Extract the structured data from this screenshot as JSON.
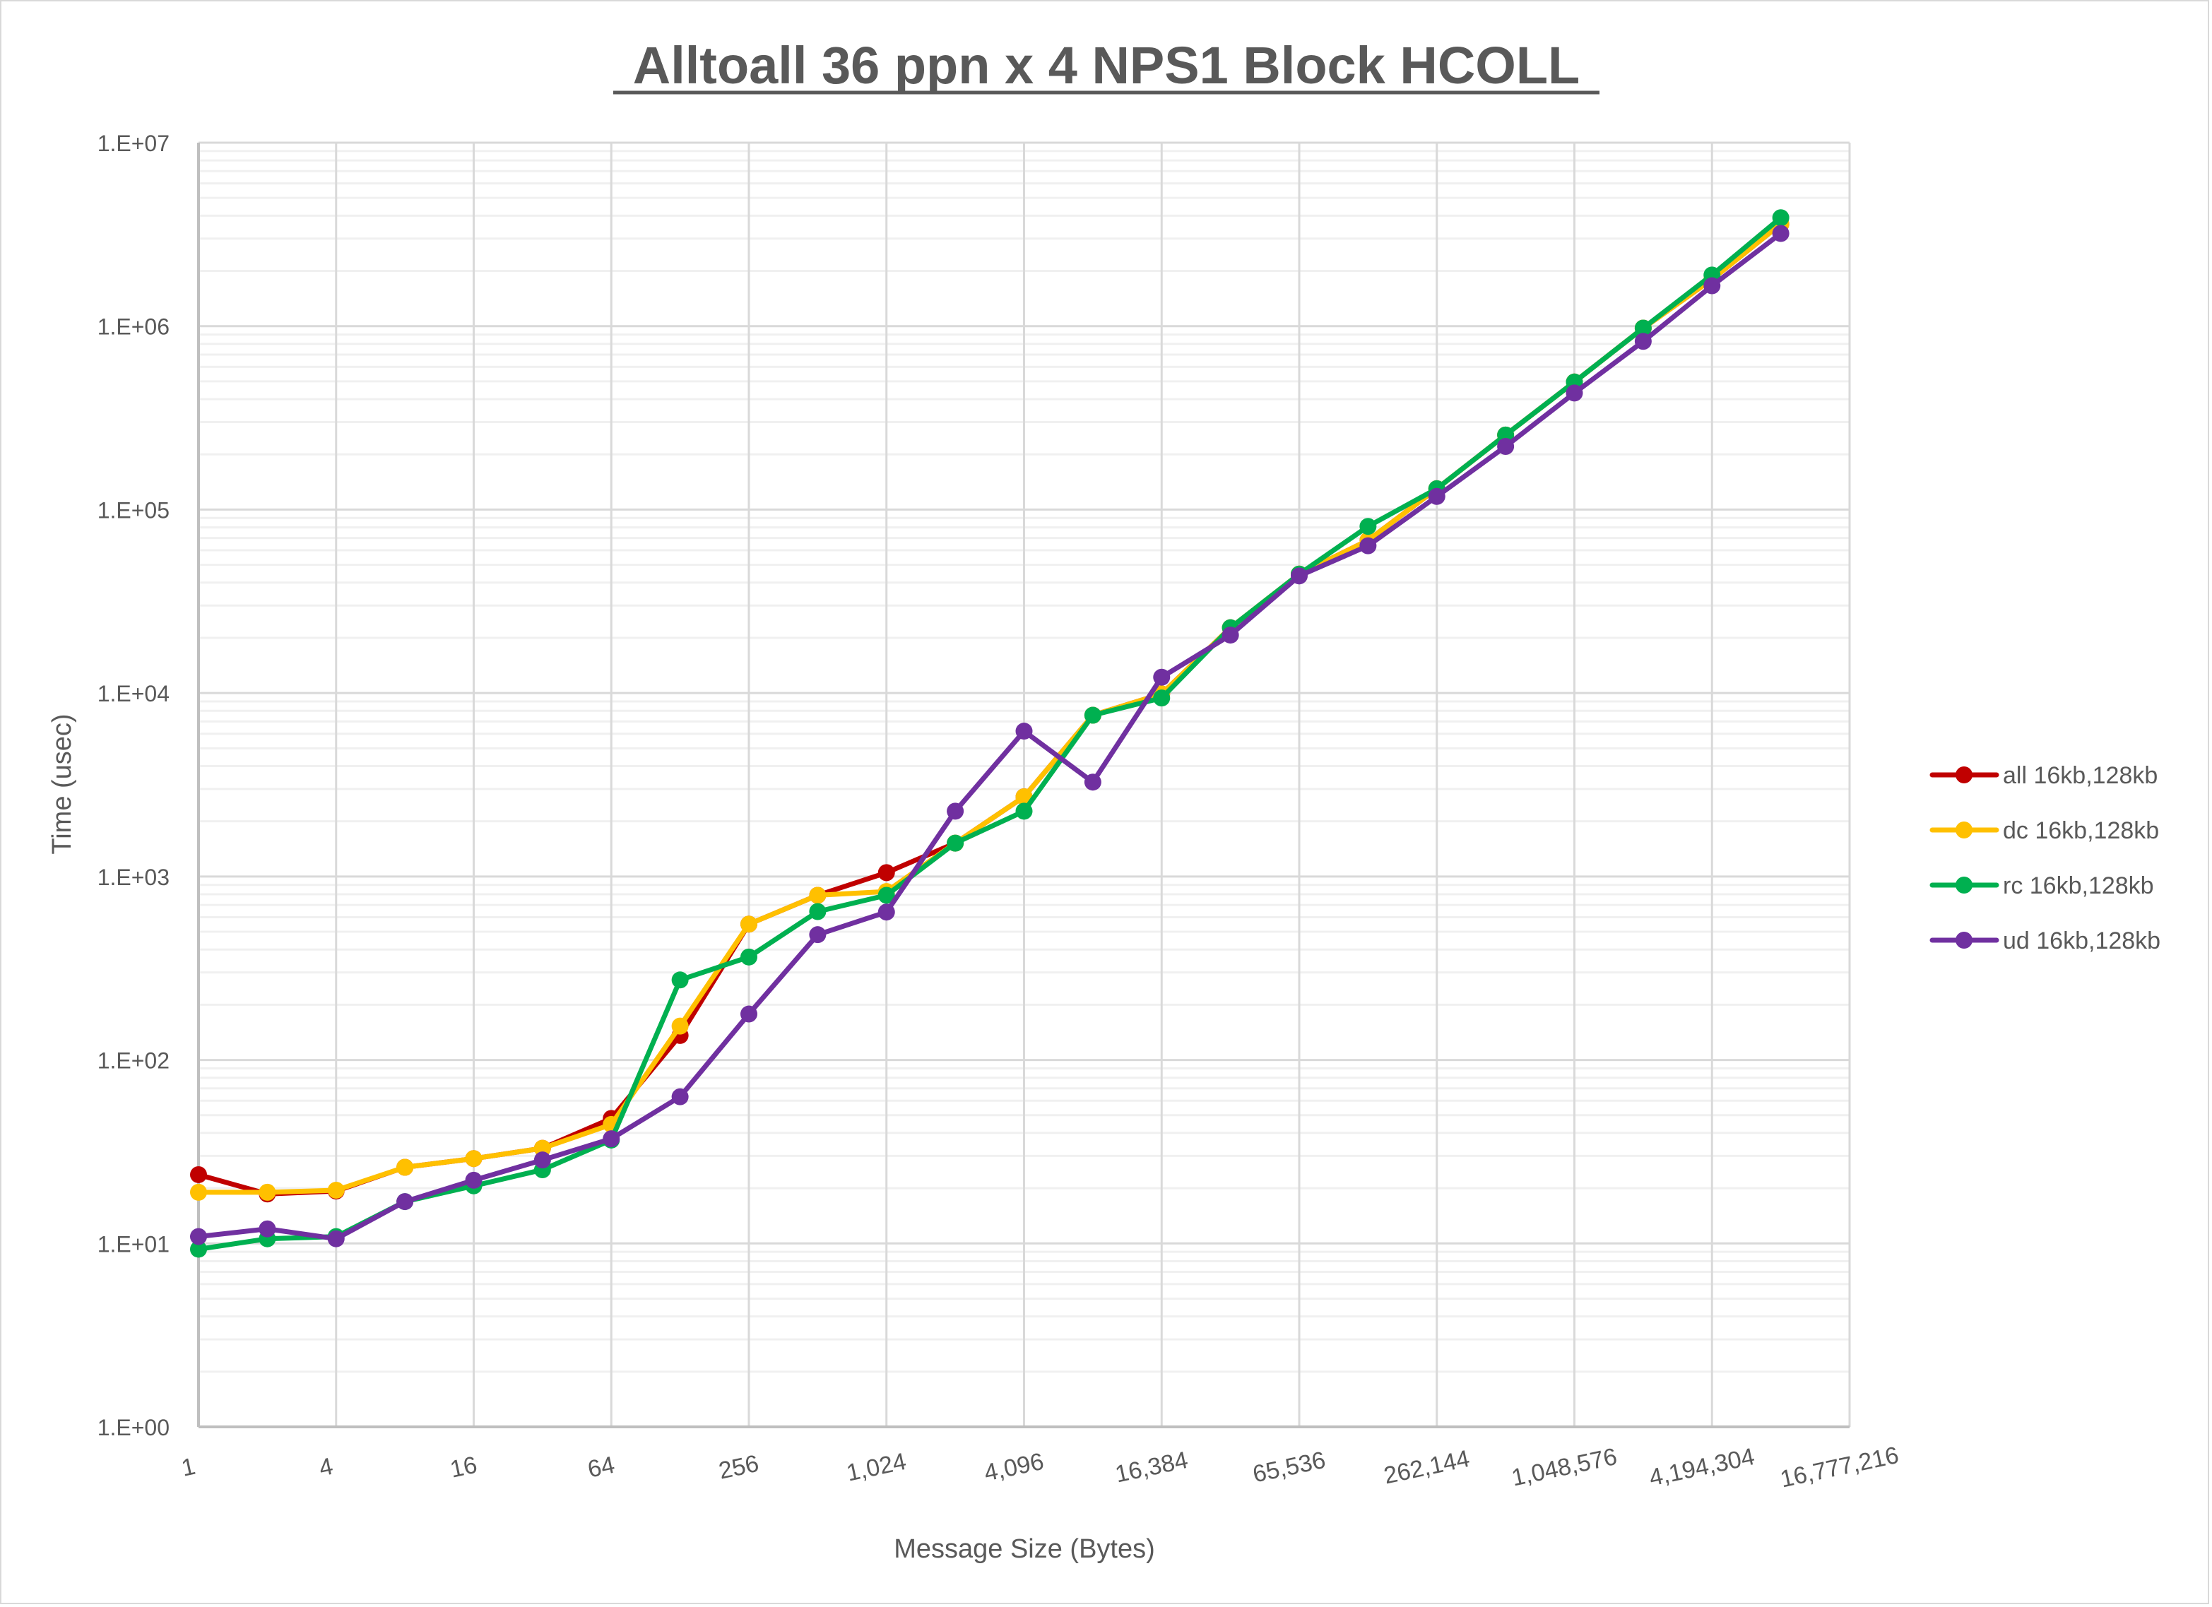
{
  "title": "Alltoall 36 ppn x 4 NPS1 Block HCOLL",
  "chart_data": {
    "type": "line",
    "title": "Alltoall 36 ppn x 4 NPS1 Block HCOLL",
    "xlabel": "Message Size (Bytes)",
    "ylabel": "Time (usec)",
    "x_scale": "log2",
    "y_scale": "log10",
    "ylim": [
      1,
      10000000
    ],
    "y_ticks": [
      "1.E+00",
      "1.E+01",
      "1.E+02",
      "1.E+03",
      "1.E+04",
      "1.E+05",
      "1.E+06",
      "1.E+07"
    ],
    "x_tick_labels": [
      "1",
      "4",
      "16",
      "64",
      "256",
      "1,024",
      "4,096",
      "16,384",
      "65,536",
      "262,144",
      "1,048,576",
      "4,194,304",
      "16,777,216"
    ],
    "grid": true,
    "legend_position": "right",
    "x": [
      1,
      2,
      4,
      8,
      16,
      32,
      64,
      128,
      256,
      512,
      1024,
      2048,
      4096,
      8192,
      16384,
      32768,
      65536,
      131072,
      262144,
      524288,
      1048576,
      2097152,
      4194304,
      8388608
    ],
    "series": [
      {
        "name": "all 16kb,128kb",
        "color": "#C00000",
        "values": [
          23.7,
          18.6,
          19.3,
          26,
          29,
          33,
          48,
          136,
          550,
          790,
          1050,
          1520,
          2720,
          7570,
          9900,
          22700,
          44500,
          68000,
          130000,
          255000,
          496000,
          976000,
          1800000,
          3600000
        ]
      },
      {
        "name": "dc 16kb,128kb",
        "color": "#FFC000",
        "values": [
          19.0,
          19.0,
          19.5,
          26,
          29,
          33,
          44.5,
          153,
          550,
          790,
          828,
          1520,
          2720,
          7570,
          9900,
          22700,
          44500,
          68000,
          130000,
          255000,
          496000,
          976000,
          1800000,
          3600000
        ]
      },
      {
        "name": "rc 16kb,128kb",
        "color": "#00B050",
        "values": [
          9.3,
          10.6,
          10.9,
          16.9,
          20.6,
          25.2,
          36.6,
          273,
          364,
          644,
          790,
          1520,
          2270,
          7570,
          9400,
          22700,
          44500,
          81000,
          130000,
          255000,
          496000,
          976000,
          1900000,
          3900000
        ]
      },
      {
        "name": "ud 16kb,128kb",
        "color": "#7030A0",
        "values": [
          10.9,
          12.0,
          10.6,
          16.9,
          22.1,
          28.5,
          37.2,
          63,
          178,
          482,
          640,
          2270,
          6200,
          3270,
          12200,
          20700,
          43500,
          63500,
          118000,
          221000,
          432000,
          826000,
          1660000,
          3200000
        ]
      }
    ]
  },
  "legend": {
    "items": [
      {
        "label": "all 16kb,128kb",
        "color": "#C00000"
      },
      {
        "label": "dc 16kb,128kb",
        "color": "#FFC000"
      },
      {
        "label": "rc 16kb,128kb",
        "color": "#00B050"
      },
      {
        "label": "ud 16kb,128kb",
        "color": "#7030A0"
      }
    ]
  },
  "style": {
    "gridMajor": "#d9d9d9",
    "gridMinor": "#f0f0f0",
    "axisColor": "#bfbfbf",
    "textColor": "#595959"
  }
}
